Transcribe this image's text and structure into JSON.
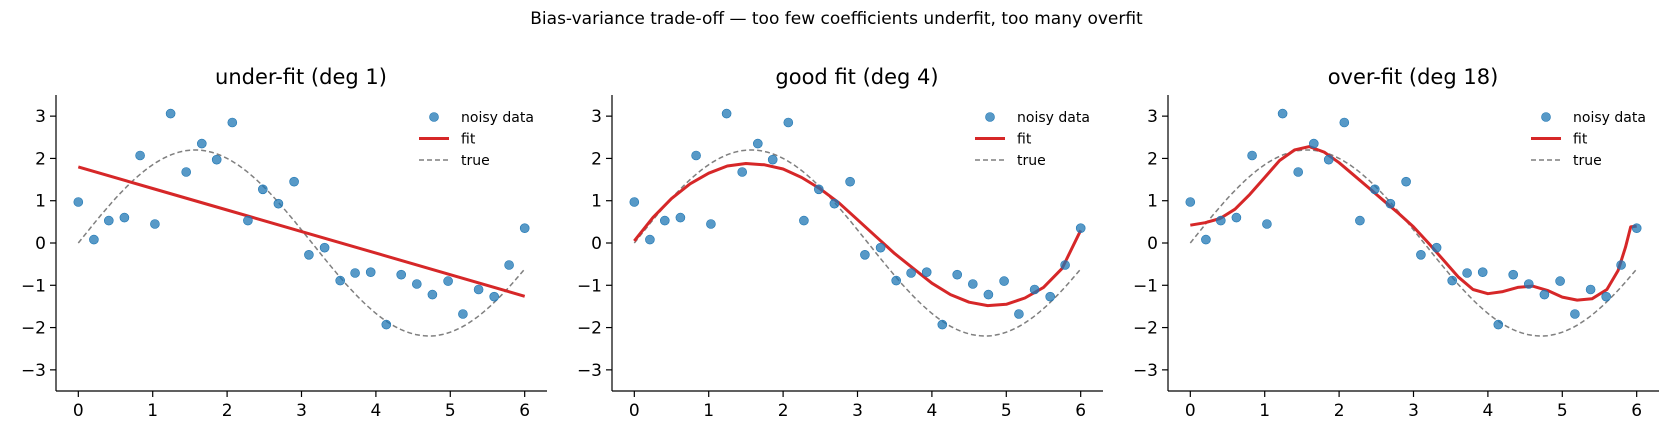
{
  "figure": {
    "suptitle": "Bias-variance trade-off — too few coefficients underfit, too many overfit"
  },
  "colors": {
    "data": "#1f77b4",
    "fit": "#d62728",
    "true": "#7f7f7f"
  },
  "chart_data": [
    {
      "type": "scatter",
      "title": "under-fit (deg 1)",
      "xlabel": "",
      "ylabel": "",
      "xlim": [
        -0.3,
        6.3
      ],
      "ylim": [
        -3.5,
        3.5
      ],
      "xticks": [
        0,
        1,
        2,
        3,
        4,
        5,
        6
      ],
      "yticks": [
        -3,
        -2,
        -1,
        0,
        1,
        2,
        3
      ],
      "legend": {
        "placement": "top-right",
        "entries": [
          "noisy data",
          "fit",
          "true"
        ]
      },
      "series": [
        {
          "name": "noisy data",
          "kind": "scatter",
          "x": [
            0,
            0.21,
            0.41,
            0.62,
            0.83,
            1.03,
            1.24,
            1.45,
            1.66,
            1.86,
            2.07,
            2.28,
            2.48,
            2.69,
            2.9,
            3.1,
            3.31,
            3.52,
            3.72,
            3.93,
            4.14,
            4.34,
            4.55,
            4.76,
            4.97,
            5.17,
            5.38,
            5.59,
            5.79,
            6.0
          ],
          "y": [
            0.97,
            0.08,
            0.53,
            0.6,
            2.07,
            0.45,
            3.06,
            1.68,
            2.35,
            1.97,
            2.85,
            0.53,
            1.27,
            0.93,
            1.45,
            -0.28,
            -0.11,
            -0.89,
            -0.71,
            -0.69,
            -1.93,
            -0.75,
            -0.97,
            -1.22,
            -0.9,
            -1.68,
            -1.1,
            -1.27,
            -0.52,
            0.35
          ]
        },
        {
          "name": "fit",
          "kind": "line",
          "x": [
            0,
            1,
            2,
            3,
            4,
            5,
            6
          ],
          "y": [
            1.8,
            1.29,
            0.78,
            0.27,
            -0.24,
            -0.75,
            -1.26
          ]
        },
        {
          "name": "true",
          "kind": "line",
          "function": "2.2*sin(x)"
        }
      ]
    },
    {
      "type": "scatter",
      "title": "good fit (deg 4)",
      "xlabel": "",
      "ylabel": "",
      "xlim": [
        -0.3,
        6.3
      ],
      "ylim": [
        -3.5,
        3.5
      ],
      "xticks": [
        0,
        1,
        2,
        3,
        4,
        5,
        6
      ],
      "yticks": [
        -3,
        -2,
        -1,
        0,
        1,
        2,
        3
      ],
      "legend": {
        "placement": "top-right",
        "entries": [
          "noisy data",
          "fit",
          "true"
        ]
      },
      "series": [
        {
          "name": "noisy data",
          "kind": "scatter",
          "x": [
            0,
            0.21,
            0.41,
            0.62,
            0.83,
            1.03,
            1.24,
            1.45,
            1.66,
            1.86,
            2.07,
            2.28,
            2.48,
            2.69,
            2.9,
            3.1,
            3.31,
            3.52,
            3.72,
            3.93,
            4.14,
            4.34,
            4.55,
            4.76,
            4.97,
            5.17,
            5.38,
            5.59,
            5.79,
            6.0
          ],
          "y": [
            0.97,
            0.08,
            0.53,
            0.6,
            2.07,
            0.45,
            3.06,
            1.68,
            2.35,
            1.97,
            2.85,
            0.53,
            1.27,
            0.93,
            1.45,
            -0.28,
            -0.11,
            -0.89,
            -0.71,
            -0.69,
            -1.93,
            -0.75,
            -0.97,
            -1.22,
            -0.9,
            -1.68,
            -1.1,
            -1.27,
            -0.52,
            0.35
          ]
        },
        {
          "name": "fit",
          "kind": "line",
          "x": [
            0,
            0.25,
            0.5,
            0.75,
            1.0,
            1.25,
            1.5,
            1.75,
            2.0,
            2.25,
            2.5,
            2.75,
            3.0,
            3.25,
            3.5,
            3.75,
            4.0,
            4.25,
            4.5,
            4.75,
            5.0,
            5.25,
            5.5,
            5.75,
            6.0
          ],
          "y": [
            0.05,
            0.6,
            1.05,
            1.4,
            1.65,
            1.82,
            1.88,
            1.85,
            1.75,
            1.55,
            1.28,
            0.95,
            0.55,
            0.15,
            -0.25,
            -0.6,
            -0.95,
            -1.22,
            -1.4,
            -1.48,
            -1.45,
            -1.3,
            -1.05,
            -0.6,
            0.3
          ]
        },
        {
          "name": "true",
          "kind": "line",
          "function": "2.2*sin(x)"
        }
      ]
    },
    {
      "type": "scatter",
      "title": "over-fit (deg 18)",
      "xlabel": "",
      "ylabel": "",
      "xlim": [
        -0.3,
        6.3
      ],
      "ylim": [
        -3.5,
        3.5
      ],
      "xticks": [
        0,
        1,
        2,
        3,
        4,
        5,
        6
      ],
      "yticks": [
        -3,
        -2,
        -1,
        0,
        1,
        2,
        3
      ],
      "legend": {
        "placement": "top-right",
        "entries": [
          "noisy data",
          "fit",
          "true"
        ]
      },
      "series": [
        {
          "name": "noisy data",
          "kind": "scatter",
          "x": [
            0,
            0.21,
            0.41,
            0.62,
            0.83,
            1.03,
            1.24,
            1.45,
            1.66,
            1.86,
            2.07,
            2.28,
            2.48,
            2.69,
            2.9,
            3.1,
            3.31,
            3.52,
            3.72,
            3.93,
            4.14,
            4.34,
            4.55,
            4.76,
            4.97,
            5.17,
            5.38,
            5.59,
            5.79,
            6.0
          ],
          "y": [
            0.97,
            0.08,
            0.53,
            0.6,
            2.07,
            0.45,
            3.06,
            1.68,
            2.35,
            1.97,
            2.85,
            0.53,
            1.27,
            0.93,
            1.45,
            -0.28,
            -0.11,
            -0.89,
            -0.71,
            -0.69,
            -1.93,
            -0.75,
            -0.97,
            -1.22,
            -0.9,
            -1.68,
            -1.1,
            -1.27,
            -0.52,
            0.35
          ]
        },
        {
          "name": "fit",
          "kind": "line",
          "x": [
            0,
            0.2,
            0.4,
            0.6,
            0.8,
            1.0,
            1.2,
            1.4,
            1.6,
            1.8,
            2.0,
            2.2,
            2.4,
            2.6,
            2.8,
            3.0,
            3.2,
            3.4,
            3.6,
            3.8,
            4.0,
            4.2,
            4.4,
            4.6,
            4.8,
            5.0,
            5.2,
            5.4,
            5.6,
            5.75,
            5.85,
            5.92,
            6.0
          ],
          "y": [
            0.42,
            0.48,
            0.58,
            0.8,
            1.15,
            1.55,
            1.95,
            2.2,
            2.28,
            2.15,
            1.9,
            1.6,
            1.3,
            1.0,
            0.7,
            0.38,
            0.0,
            -0.4,
            -0.8,
            -1.1,
            -1.2,
            -1.15,
            -1.05,
            -1.02,
            -1.12,
            -1.28,
            -1.35,
            -1.32,
            -1.1,
            -0.65,
            -0.1,
            0.38,
            0.4
          ]
        },
        {
          "name": "true",
          "kind": "line",
          "function": "2.2*sin(x)"
        }
      ]
    }
  ]
}
